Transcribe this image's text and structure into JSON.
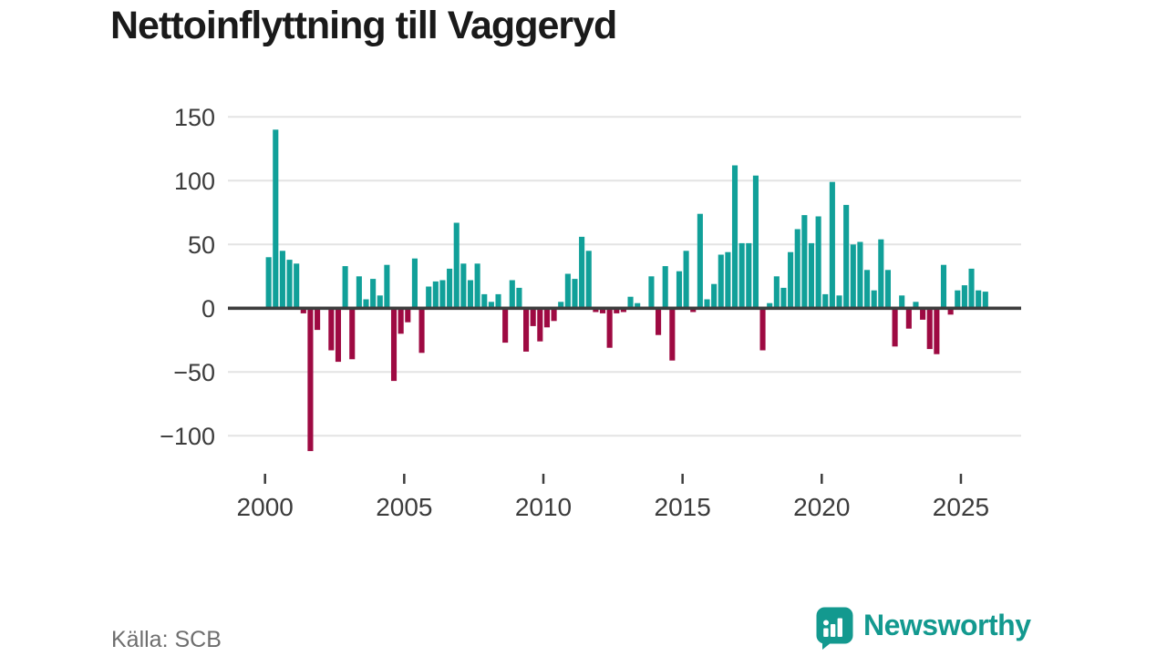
{
  "title": "Nettoinflyttning till Vaggeryd",
  "footer": {
    "source": "Källa: SCB"
  },
  "brand": {
    "name": "Newsworthy"
  },
  "colors": {
    "positive_bar": "#11a099",
    "negative_bar": "#9e0a42",
    "grid_line": "#e4e4e4",
    "axis_line": "#3d3d3d",
    "tick_text": "#3c3c3c",
    "title_text": "#1a1a1a",
    "source_text": "#6e6e6e",
    "brand_teal": "#13998f"
  },
  "chart_data": {
    "type": "bar",
    "title": "Nettoinflyttning till Vaggeryd",
    "frequency": "quarterly",
    "start": "2000 Q1",
    "end": "2025 Q4",
    "xlabel": "",
    "ylabel": "",
    "ylim": [
      -120,
      155
    ],
    "grid": true,
    "legend": false,
    "y_ticks": [
      150,
      100,
      50,
      0,
      -50,
      -100
    ],
    "x_tick_years": [
      2000,
      2005,
      2010,
      2015,
      2020,
      2025
    ],
    "series": [
      {
        "name": "Nettoinflyttning",
        "values_by_year": [
          {
            "year": 2000,
            "quarters": [
              40,
              140,
              45,
              38
            ]
          },
          {
            "year": 2001,
            "quarters": [
              35,
              -4,
              -112,
              -17
            ]
          },
          {
            "year": 2002,
            "quarters": [
              0,
              -33,
              -42,
              33
            ]
          },
          {
            "year": 2003,
            "quarters": [
              -40,
              25,
              7,
              23
            ]
          },
          {
            "year": 2004,
            "quarters": [
              10,
              34,
              -57,
              -20
            ]
          },
          {
            "year": 2005,
            "quarters": [
              -11,
              39,
              -35,
              17
            ]
          },
          {
            "year": 2006,
            "quarters": [
              21,
              22,
              31,
              67
            ]
          },
          {
            "year": 2007,
            "quarters": [
              35,
              22,
              35,
              11
            ]
          },
          {
            "year": 2008,
            "quarters": [
              5,
              11,
              -27,
              22
            ]
          },
          {
            "year": 2009,
            "quarters": [
              16,
              -34,
              -14,
              -26
            ]
          },
          {
            "year": 2010,
            "quarters": [
              -15,
              -10,
              5,
              27
            ]
          },
          {
            "year": 2011,
            "quarters": [
              23,
              56,
              45,
              -3
            ]
          },
          {
            "year": 2012,
            "quarters": [
              -4,
              -31,
              -4,
              -3
            ]
          },
          {
            "year": 2013,
            "quarters": [
              9,
              4,
              0,
              25
            ]
          },
          {
            "year": 2014,
            "quarters": [
              -21,
              33,
              -41,
              29
            ]
          },
          {
            "year": 2015,
            "quarters": [
              45,
              -3,
              74,
              7
            ]
          },
          {
            "year": 2016,
            "quarters": [
              19,
              42,
              44,
              112
            ]
          },
          {
            "year": 2017,
            "quarters": [
              51,
              51,
              104,
              -33
            ]
          },
          {
            "year": 2018,
            "quarters": [
              4,
              25,
              16,
              44
            ]
          },
          {
            "year": 2019,
            "quarters": [
              62,
              73,
              51,
              72
            ]
          },
          {
            "year": 2020,
            "quarters": [
              11,
              99,
              10,
              81
            ]
          },
          {
            "year": 2021,
            "quarters": [
              50,
              52,
              30,
              14
            ]
          },
          {
            "year": 2022,
            "quarters": [
              54,
              30,
              -30,
              10
            ]
          },
          {
            "year": 2023,
            "quarters": [
              -16,
              5,
              -9,
              -32
            ]
          },
          {
            "year": 2024,
            "quarters": [
              -36,
              34,
              -5,
              14
            ]
          },
          {
            "year": 2025,
            "quarters": [
              18,
              31,
              14,
              13
            ]
          }
        ]
      }
    ]
  }
}
